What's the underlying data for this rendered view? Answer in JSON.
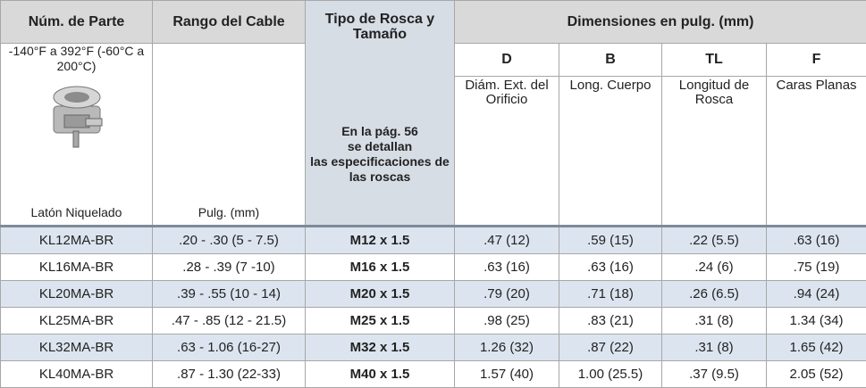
{
  "header": {
    "part_number": "Núm. de Parte",
    "cable_range": "Rango del Cable",
    "thread_type": "Tipo de Rosca y Tamaño",
    "dimensions": "Dimensiones en pulg. (mm)"
  },
  "subheader": {
    "temperature": "-140°F a 392°F (-60°C a 200°C)",
    "material": "Latón Niquelado",
    "cable_units": "Pulg. (mm)",
    "thread_note": [
      "En la pág. 56",
      "se detallan",
      "las especificaciones de",
      "las roscas"
    ],
    "dims": [
      {
        "code": "D",
        "description": "Diám. Ext. del Orificio"
      },
      {
        "code": "B",
        "description": "Long. Cuerpo"
      },
      {
        "code": "TL",
        "description": "Longitud de Rosca"
      },
      {
        "code": "F",
        "description": "Caras Planas"
      }
    ]
  },
  "table": {
    "rows": [
      [
        "KL12MA-BR",
        ".20 - .30 (5 - 7.5)",
        "M12 x 1.5",
        ".47 (12)",
        ".59 (15)",
        ".22 (5.5)",
        ".63 (16)"
      ],
      [
        "KL16MA-BR",
        ".28 - .39 (7 -10)",
        "M16 x 1.5",
        ".63 (16)",
        ".63 (16)",
        ".24 (6)",
        ".75 (19)"
      ],
      [
        "KL20MA-BR",
        ".39 - .55 (10 - 14)",
        "M20 x 1.5",
        ".79 (20)",
        ".71 (18)",
        ".26 (6.5)",
        ".94 (24)"
      ],
      [
        "KL25MA-BR",
        ".47 - .85 (12 - 21.5)",
        "M25 x 1.5",
        ".98 (25)",
        ".83 (21)",
        ".31 (8)",
        "1.34 (34)"
      ],
      [
        "KL32MA-BR",
        ".63 - 1.06 (16-27)",
        "M32 x 1.5",
        "1.26 (32)",
        ".87 (22)",
        ".31 (8)",
        "1.65 (42)"
      ],
      [
        "KL40MA-BR",
        ".87 - 1.30 (22-33)",
        "M40 x 1.5",
        "1.57 (40)",
        "1.00 (25.5)",
        ".37 (9.5)",
        "2.05 (52)"
      ]
    ]
  }
}
